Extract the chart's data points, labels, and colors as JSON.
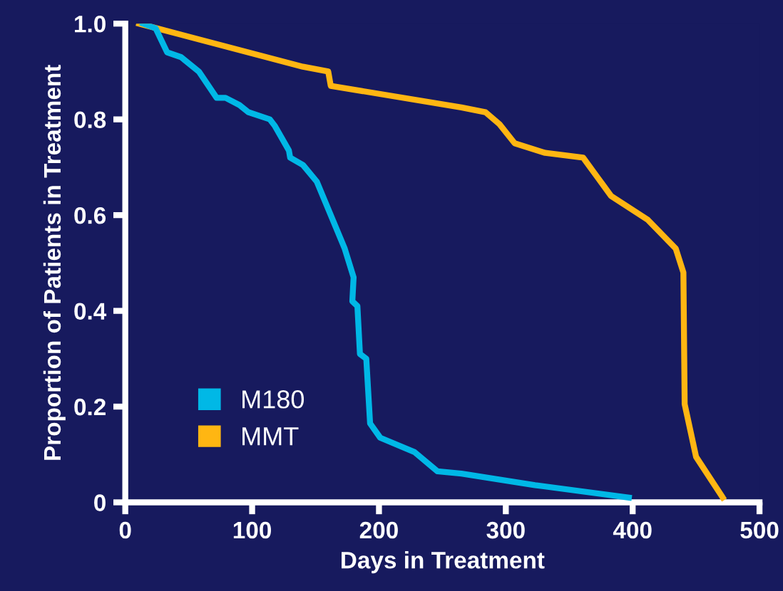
{
  "chart_data": {
    "type": "line",
    "xlabel": "Days in Treatment",
    "ylabel": "Proportion of Patients in Treatment",
    "xlim": [
      0,
      500
    ],
    "ylim": [
      0,
      1.0
    ],
    "xticks": [
      0,
      100,
      200,
      300,
      400,
      500
    ],
    "yticks": [
      0,
      0.2,
      0.4,
      0.6,
      0.8,
      {
        "value": 1.0,
        "label": "1.0"
      }
    ],
    "grid": false,
    "legend": "lower left",
    "marker": "none",
    "line_style": "solid",
    "series": [
      {
        "name": "M180",
        "color": "#00b8e6",
        "x": [
          14,
          24,
          33,
          44,
          58,
          72,
          79,
          90,
          97,
          114,
          118,
          129,
          130,
          140,
          151,
          162,
          173,
          180,
          179,
          183,
          185,
          190,
          193,
          201,
          228,
          246,
          265,
          323,
          397
        ],
        "values": [
          1.0,
          0.99,
          0.94,
          0.93,
          0.9,
          0.845,
          0.845,
          0.83,
          0.815,
          0.8,
          0.786,
          0.735,
          0.72,
          0.705,
          0.67,
          0.6,
          0.53,
          0.47,
          0.42,
          0.41,
          0.31,
          0.3,
          0.165,
          0.135,
          0.105,
          0.065,
          0.06,
          0.036,
          0.01
        ]
      },
      {
        "name": "MMT",
        "color": "#ffb612",
        "x": [
          11,
          140,
          160,
          162,
          265,
          284,
          295,
          307,
          331,
          361,
          372,
          383,
          412,
          434,
          440,
          441,
          450,
          471
        ],
        "values": [
          1.0,
          0.91,
          0.9,
          0.87,
          0.825,
          0.815,
          0.79,
          0.75,
          0.73,
          0.72,
          0.68,
          0.64,
          0.59,
          0.53,
          0.48,
          0.205,
          0.095,
          0.01
        ]
      }
    ]
  }
}
